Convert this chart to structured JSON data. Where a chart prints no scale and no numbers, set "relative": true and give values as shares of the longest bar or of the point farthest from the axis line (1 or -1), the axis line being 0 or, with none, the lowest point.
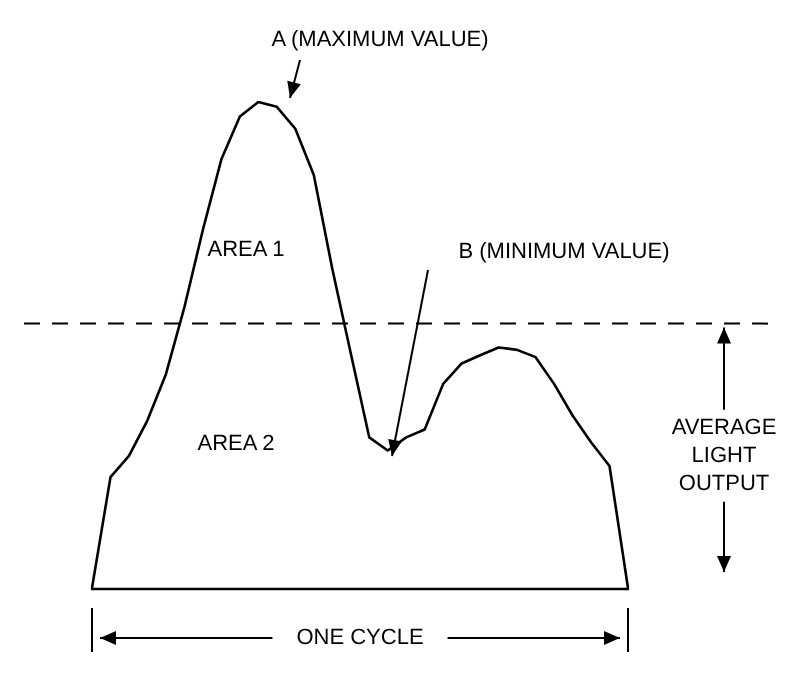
{
  "chart_data": {
    "type": "line",
    "relative": true,
    "color": "#000000",
    "xlabel": "ONE CYCLE",
    "categories": [
      null,
      null,
      null,
      null,
      null,
      null,
      null,
      null,
      null,
      null,
      null,
      null,
      null,
      null,
      null,
      null,
      null,
      null,
      null,
      null,
      null,
      null,
      null,
      null,
      null,
      null,
      null,
      null,
      null,
      null
    ],
    "values": [
      0,
      0.228,
      0.272,
      0.345,
      0.44,
      0.578,
      0.737,
      0.882,
      0.97,
      1,
      0.99,
      0.945,
      0.85,
      0.657,
      0.483,
      0.31,
      0.283,
      0.31,
      0.326,
      0.42,
      0.462,
      0.479,
      0.495,
      0.49,
      0.475,
      0.42,
      0.355,
      0.3,
      0.251,
      0
    ],
    "ref_lines": [
      {
        "axis": "y",
        "value": 0.544,
        "label": "AVERAGE LIGHT OUTPUT",
        "line_style": "dashed"
      }
    ],
    "annotations": [
      "A (MAXIMUM VALUE)",
      "B (MINIMUM VALUE)",
      "AREA 1",
      "AREA 2"
    ],
    "line_style": "solid"
  }
}
